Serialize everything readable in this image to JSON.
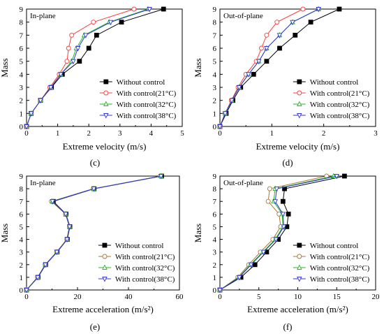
{
  "figure": {
    "panel_labels": [
      "(c)",
      "(d)",
      "(e)",
      "(f)"
    ]
  },
  "legend_labels": [
    "Without control",
    "With control(21°C)",
    "With control(32°C)",
    "With control(38°C)"
  ],
  "series_colors": [
    "#000000",
    "#ff3b3b",
    "#22bb22",
    "#3333dd"
  ],
  "chart_data": [
    {
      "type": "line",
      "title": "In-plane",
      "xlabel": "Extreme velocity (m/s)",
      "ylabel": "Mass",
      "xlim": [
        0,
        5
      ],
      "ylim": [
        0,
        9
      ],
      "xticks": [
        0,
        1,
        2,
        3,
        4,
        5
      ],
      "yticks": [
        0,
        1,
        2,
        3,
        4,
        5,
        6,
        7,
        8,
        9
      ],
      "legend_position": "lower-right",
      "series": [
        {
          "name": "Without control",
          "color": "#000000",
          "marker": "square",
          "x": [
            0,
            0.15,
            0.45,
            0.8,
            1.15,
            1.7,
            2.0,
            2.25,
            3.05,
            4.4
          ],
          "y": [
            0,
            1,
            2,
            3,
            4,
            5,
            6,
            7,
            8,
            9
          ]
        },
        {
          "name": "With control(21°C)",
          "color": "#ff3b3b",
          "marker": "circle",
          "x": [
            0,
            0.15,
            0.45,
            0.75,
            1.05,
            1.3,
            1.35,
            1.45,
            2.15,
            3.45
          ],
          "y": [
            0,
            1,
            2,
            3,
            4,
            5,
            6,
            7,
            8,
            9
          ]
        },
        {
          "name": "With control(32°C)",
          "color": "#22bb22",
          "marker": "triangle-up",
          "x": [
            0,
            0.15,
            0.45,
            0.78,
            1.1,
            1.45,
            1.6,
            1.85,
            2.65,
            3.9
          ],
          "y": [
            0,
            1,
            2,
            3,
            4,
            5,
            6,
            7,
            8,
            9
          ]
        },
        {
          "name": "With control(38°C)",
          "color": "#3333dd",
          "marker": "triangle-down",
          "x": [
            0,
            0.15,
            0.45,
            0.78,
            1.1,
            1.5,
            1.65,
            1.9,
            2.7,
            3.95
          ],
          "y": [
            0,
            1,
            2,
            3,
            4,
            5,
            6,
            7,
            8,
            9
          ]
        }
      ]
    },
    {
      "type": "line",
      "title": "Out-of-plane",
      "xlabel": "Extreme velocity (m/s)",
      "ylabel": "Mass",
      "xlim": [
        0,
        3
      ],
      "ylim": [
        0,
        9
      ],
      "xticks": [
        0,
        1,
        2,
        3
      ],
      "yticks": [
        0,
        1,
        2,
        3,
        4,
        5,
        6,
        7,
        8,
        9
      ],
      "legend_position": "lower-right",
      "series": [
        {
          "name": "Without control",
          "color": "#000000",
          "marker": "square",
          "x": [
            0,
            0.12,
            0.25,
            0.4,
            0.65,
            0.9,
            1.15,
            1.45,
            1.75,
            2.3
          ],
          "y": [
            0,
            1,
            2,
            3,
            4,
            5,
            6,
            7,
            8,
            9
          ]
        },
        {
          "name": "With control(21°C)",
          "color": "#ff3b3b",
          "marker": "circle",
          "x": [
            0,
            0.1,
            0.22,
            0.35,
            0.5,
            0.7,
            0.8,
            0.9,
            1.1,
            1.6
          ],
          "y": [
            0,
            1,
            2,
            3,
            4,
            5,
            6,
            7,
            8,
            9
          ]
        },
        {
          "name": "With control(32°C)",
          "color": "#22bb22",
          "marker": "triangle-up",
          "x": [
            0,
            0.1,
            0.23,
            0.37,
            0.55,
            0.75,
            0.9,
            1.15,
            1.4,
            1.9
          ],
          "y": [
            0,
            1,
            2,
            3,
            4,
            5,
            6,
            7,
            8,
            9
          ]
        },
        {
          "name": "With control(38°C)",
          "color": "#3333dd",
          "marker": "triangle-down",
          "x": [
            0,
            0.1,
            0.23,
            0.37,
            0.55,
            0.75,
            0.9,
            1.15,
            1.4,
            1.9
          ],
          "y": [
            0,
            1,
            2,
            3,
            4,
            5,
            6,
            7,
            8,
            9
          ]
        }
      ]
    },
    {
      "type": "line",
      "title": "In-plane",
      "xlabel": "Extreme acceleration (m/s²)",
      "ylabel": "Mass",
      "xlim": [
        0,
        60
      ],
      "ylim": [
        0,
        9
      ],
      "xticks": [
        0,
        20,
        40,
        60
      ],
      "yticks": [
        0,
        1,
        2,
        3,
        4,
        5,
        6,
        7,
        8,
        9
      ],
      "legend_position": "lower-right",
      "series": [
        {
          "name": "Without control",
          "color": "#000000",
          "marker": "square",
          "x": [
            0,
            4.5,
            7.5,
            12,
            16,
            17,
            15.5,
            10.5,
            26.5,
            53
          ],
          "y": [
            0,
            1,
            2,
            3,
            4,
            5,
            6,
            7,
            8,
            9
          ]
        },
        {
          "name": "With control(21°C)",
          "color": "#aa7733",
          "marker": "circle",
          "x": [
            0,
            4.3,
            7.3,
            11.8,
            15.8,
            16.8,
            15.3,
            9.8,
            26.2,
            52.5
          ],
          "y": [
            0,
            1,
            2,
            3,
            4,
            5,
            6,
            7,
            8,
            9
          ]
        },
        {
          "name": "With control(32°C)",
          "color": "#22bb22",
          "marker": "triangle-up",
          "x": [
            0,
            4.4,
            7.4,
            11.9,
            15.9,
            16.9,
            15.4,
            10.1,
            26.3,
            52.7
          ],
          "y": [
            0,
            1,
            2,
            3,
            4,
            5,
            6,
            7,
            8,
            9
          ]
        },
        {
          "name": "With control(38°C)",
          "color": "#3333dd",
          "marker": "triangle-down",
          "x": [
            0,
            4.4,
            7.4,
            11.9,
            15.9,
            16.9,
            15.4,
            10.2,
            26.4,
            52.8
          ],
          "y": [
            0,
            1,
            2,
            3,
            4,
            5,
            6,
            7,
            8,
            9
          ]
        }
      ]
    },
    {
      "type": "line",
      "title": "Out-of-plane",
      "xlabel": "Extreme acceleration (m/s²)",
      "ylabel": "Mass",
      "xlim": [
        0,
        20
      ],
      "ylim": [
        0,
        9
      ],
      "xticks": [
        0,
        5,
        10,
        15,
        20
      ],
      "yticks": [
        0,
        1,
        2,
        3,
        4,
        5,
        6,
        7,
        8,
        9
      ],
      "legend_position": "lower-right",
      "series": [
        {
          "name": "Without control",
          "color": "#000000",
          "marker": "square",
          "x": [
            0,
            2.7,
            4.5,
            6.0,
            7.5,
            8.6,
            8.8,
            8.1,
            8.3,
            16.0
          ],
          "y": [
            0,
            1,
            2,
            3,
            4,
            5,
            6,
            7,
            8,
            9
          ]
        },
        {
          "name": "With control(21°C)",
          "color": "#aa7733",
          "marker": "circle",
          "x": [
            0,
            2.3,
            3.7,
            5.2,
            6.8,
            7.8,
            7.6,
            6.2,
            6.4,
            13.7
          ],
          "y": [
            0,
            1,
            2,
            3,
            4,
            5,
            6,
            7,
            8,
            9
          ]
        },
        {
          "name": "With control(32°C)",
          "color": "#22bb22",
          "marker": "triangle-up",
          "x": [
            0,
            2.4,
            3.9,
            5.5,
            7.1,
            8.1,
            8.0,
            6.9,
            7.1,
            14.6
          ],
          "y": [
            0,
            1,
            2,
            3,
            4,
            5,
            6,
            7,
            8,
            9
          ]
        },
        {
          "name": "With control(38°C)",
          "color": "#3333dd",
          "marker": "triangle-down",
          "x": [
            0,
            2.5,
            4.0,
            5.6,
            7.2,
            8.2,
            8.1,
            7.1,
            7.3,
            15.0
          ],
          "y": [
            0,
            1,
            2,
            3,
            4,
            5,
            6,
            7,
            8,
            9
          ]
        }
      ]
    }
  ]
}
